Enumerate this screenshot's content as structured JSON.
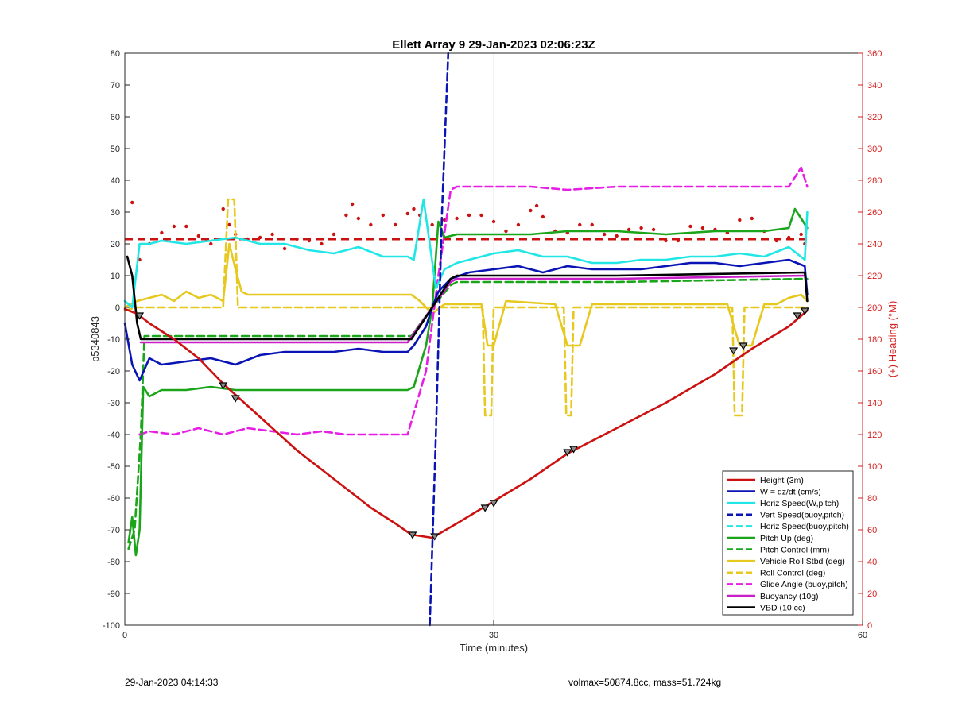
{
  "footer": {
    "left": "29-Jan-2023 04:14:33",
    "right": "volmax=50874.8cc, mass=51.724kg"
  },
  "chart_data": {
    "type": "line",
    "title": "Ellett Array 9 29-Jan-2023 02:06:23Z",
    "xlabel": "Time (minutes)",
    "ylabel": "p5340843",
    "y2label": "(+) Heading (°M)",
    "xlim": [
      0,
      60
    ],
    "ylim": [
      -100,
      80
    ],
    "y2lim": [
      0,
      360
    ],
    "xticks": [
      "0",
      "30",
      "60"
    ],
    "yticks": [
      "-100",
      "-90",
      "-80",
      "-70",
      "-60",
      "-50",
      "-40",
      "-30",
      "-20",
      "-10",
      "0",
      "10",
      "20",
      "30",
      "40",
      "50",
      "60",
      "70",
      "80"
    ],
    "y2ticks": [
      "0",
      "20",
      "40",
      "60",
      "80",
      "100",
      "120",
      "140",
      "160",
      "180",
      "200",
      "220",
      "240",
      "260",
      "280",
      "300",
      "320",
      "340",
      "360"
    ],
    "grid": "x-only",
    "legend_position": "bottom-right",
    "colors": {
      "height": "#cc1111",
      "w": "#0a14b4",
      "horiz": "#22e6e6",
      "vert_buoy": "#0a14b4",
      "pitch": "#1aa51a",
      "roll": "#e6c81e",
      "glide": "#e61ee6",
      "buoyancy": "#c81ec8",
      "vbd": "#000000",
      "heading": "#cc1111"
    },
    "series": [
      {
        "name": "Height (3m)",
        "style": "solid",
        "color": "#cc1111",
        "x": [
          0,
          1,
          2,
          4,
          6,
          8,
          10,
          12,
          14,
          16,
          18,
          20,
          22,
          23.3,
          25,
          27,
          30,
          33,
          36,
          40,
          44,
          48,
          51,
          54,
          55.5
        ],
        "y": [
          -0.5,
          -2,
          -5,
          -10,
          -16,
          -24,
          -31,
          -38,
          -45,
          -51,
          -57,
          -63,
          -68,
          -71.5,
          -72.5,
          -68,
          -61,
          -54,
          -46,
          -38,
          -30,
          -21,
          -13,
          -6,
          -1
        ]
      },
      {
        "name": "W = dz/dt (cm/s)",
        "style": "solid",
        "color": "#0a14b4",
        "x": [
          0,
          0.6,
          1.2,
          2,
          3,
          5,
          7,
          9,
          11,
          13,
          15,
          17,
          19,
          21,
          23,
          23.5,
          24.5,
          25,
          25.5,
          26.5,
          28,
          30,
          32,
          34,
          36,
          38,
          40,
          42,
          44,
          46,
          48,
          50,
          52,
          54,
          55.3,
          55.5
        ],
        "y": [
          -5,
          -18,
          -23,
          -16,
          -18,
          -17,
          -16,
          -18,
          -15,
          -14,
          -14,
          -14,
          -13,
          -14,
          -14,
          -12,
          -6,
          0,
          5,
          9,
          11,
          12,
          13,
          11,
          13,
          12,
          12,
          12,
          13,
          14,
          14,
          13,
          14,
          15,
          13,
          4
        ]
      },
      {
        "name": "Horiz Speed(W,pitch)",
        "style": "solid",
        "color": "#22e6e6",
        "x": [
          0,
          0.6,
          1.2,
          2,
          3,
          5,
          7,
          9,
          11,
          13,
          15,
          17,
          19,
          21,
          23,
          23.5,
          24.3,
          24.8,
          25.3,
          26,
          27,
          30,
          32,
          34,
          36,
          38,
          40,
          42,
          44,
          46,
          48,
          50,
          52,
          54,
          55.3,
          55.5
        ],
        "y": [
          2,
          0,
          20,
          20,
          21,
          20,
          21,
          22,
          20,
          20,
          18,
          17,
          19,
          16,
          16,
          15,
          34,
          20,
          6,
          12,
          14,
          17,
          18,
          16,
          16,
          14,
          14,
          15,
          15,
          16,
          16,
          17,
          16,
          19,
          15,
          30
        ]
      },
      {
        "name": "Vert Speed(buoy,pitch)",
        "style": "dash",
        "color": "#0a14b4",
        "x": [
          24.8,
          25.3,
          25.8,
          26.3
        ],
        "y": [
          -100,
          -40,
          30,
          80
        ]
      },
      {
        "name": "Horiz Speed(buoy,pitch)",
        "style": "dash",
        "color": "#22e6e6",
        "x": [],
        "y": []
      },
      {
        "name": "Pitch Up (deg)",
        "style": "solid",
        "color": "#1aa51a",
        "x": [
          0.3,
          0.6,
          0.9,
          1.2,
          1.5,
          2,
          3,
          5,
          7,
          9,
          11,
          13,
          15,
          17,
          19,
          21,
          23,
          23.5,
          24.5,
          25,
          25.5,
          26,
          27,
          30,
          33,
          36,
          40,
          44,
          48,
          52,
          54,
          54.5,
          55,
          55.5
        ],
        "y": [
          -74,
          -66,
          -78,
          -70,
          -25,
          -28,
          -26,
          -26,
          -25,
          -26,
          -26,
          -26,
          -26,
          -26,
          -26,
          -26,
          -26,
          -25,
          -12,
          0,
          27,
          22,
          23,
          23,
          23,
          24,
          24,
          23,
          24,
          24,
          25,
          31,
          28,
          25
        ]
      },
      {
        "name": "Pitch Control (mm)",
        "style": "dash",
        "color": "#1aa51a",
        "x": [
          0.3,
          0.8,
          1.3,
          1.6,
          3,
          10,
          20,
          23.3,
          25,
          26.5,
          27,
          40,
          55.5
        ],
        "y": [
          -76,
          -70,
          -40,
          -9,
          -9,
          -9,
          -9,
          -9,
          0,
          7,
          8,
          8,
          9
        ]
      },
      {
        "name": "Vehicle Roll Stbd (deg)",
        "style": "solid",
        "color": "#e6c81e",
        "x": [
          0,
          1,
          2,
          3,
          4,
          5,
          6,
          7,
          8,
          8.5,
          9,
          9.5,
          10,
          12,
          14,
          16,
          18,
          20,
          22,
          23.3,
          24,
          25,
          26,
          28,
          29,
          29.5,
          30,
          31,
          35,
          36,
          37,
          38,
          40,
          45,
          49,
          50,
          51,
          52,
          53,
          54,
          55,
          55.5
        ],
        "y": [
          0,
          2,
          3,
          4,
          2,
          5,
          3,
          4,
          2,
          20,
          12,
          5,
          4,
          4,
          4,
          4,
          4,
          4,
          4,
          4,
          2,
          -2,
          1,
          1,
          1,
          -12,
          -12,
          2,
          1,
          -12,
          -12,
          1,
          1,
          1,
          1,
          -12,
          -12,
          1,
          1,
          3,
          4,
          2
        ]
      },
      {
        "name": "Roll Control (deg)",
        "style": "dash",
        "color": "#e6c81e",
        "x": [
          0,
          1,
          3,
          5,
          7,
          8,
          8.4,
          8.9,
          9.2,
          10,
          15,
          20,
          23.3,
          24,
          25,
          28,
          29.1,
          29.3,
          29.8,
          30,
          30.3,
          35,
          35.7,
          35.9,
          36.3,
          36.5,
          37,
          45,
          49.4,
          49.6,
          50.2,
          50.4,
          51,
          55.5
        ],
        "y": [
          -1,
          0,
          0,
          0,
          0,
          0,
          34,
          34,
          0,
          0,
          0,
          0,
          0,
          0,
          0,
          0,
          0,
          -34,
          -34,
          0,
          0,
          0,
          0,
          -34,
          -34,
          0,
          0,
          0,
          0,
          -34,
          -34,
          0,
          0,
          0
        ]
      },
      {
        "name": "Glide Angle (buoy,pitch)",
        "style": "dash",
        "color": "#e61ee6",
        "x": [
          1.2,
          2,
          4,
          6,
          8,
          10,
          12,
          14,
          16,
          18,
          20,
          22,
          23,
          24.5,
          25.5,
          26.5,
          27,
          30,
          33,
          36,
          40,
          44,
          48,
          52,
          54,
          55,
          55.5
        ],
        "y": [
          -40,
          -39,
          -40,
          -38,
          -40,
          -38,
          -39,
          -40,
          -39,
          -40,
          -40,
          -40,
          -40,
          -20,
          10,
          37,
          38,
          38,
          38,
          37,
          38,
          38,
          38,
          38,
          38,
          44,
          38
        ]
      },
      {
        "name": "Buoyancy (10g)",
        "style": "solid",
        "color": "#c81ec8",
        "x": [
          1.3,
          2,
          10,
          20,
          23,
          25,
          26.5,
          27,
          40,
          55.3
        ],
        "y": [
          -11,
          -11,
          -11,
          -11,
          -11,
          0,
          8,
          9,
          9,
          10
        ]
      },
      {
        "name": "VBD (10 cc)",
        "style": "solid",
        "color": "#000000",
        "x": [
          0.2,
          0.6,
          1.0,
          1.3,
          2,
          10,
          20,
          23.3,
          25,
          26.5,
          27,
          40,
          55.3,
          55.5
        ],
        "y": [
          16,
          10,
          -5,
          -10,
          -10,
          -10,
          -10,
          -10,
          0,
          9,
          10,
          10,
          11,
          2
        ]
      }
    ],
    "heading_dots": {
      "name": "Heading",
      "color": "#cc1111",
      "x": [
        0.6,
        1.2,
        2,
        3,
        4,
        5,
        6,
        7,
        8,
        8.5,
        9,
        10,
        11,
        12,
        13,
        14,
        15,
        16,
        17,
        18,
        18.5,
        19,
        20,
        21,
        22,
        23,
        23.5,
        24,
        25,
        26,
        27,
        28,
        29,
        30,
        31,
        32,
        33,
        33.5,
        34,
        35,
        36,
        37,
        38,
        39,
        40,
        41,
        42,
        43,
        44,
        45,
        46,
        47,
        48,
        49,
        50,
        51,
        52,
        53,
        54,
        55,
        55.3
      ],
      "y": [
        266,
        230,
        240,
        247,
        251,
        251,
        245,
        240,
        262,
        252,
        246,
        243,
        244,
        246,
        237,
        243,
        242,
        240,
        246,
        258,
        265,
        256,
        252,
        258,
        252,
        259,
        262,
        258,
        252,
        255,
        256,
        258,
        258,
        254,
        248,
        252,
        261,
        264,
        257,
        248,
        247,
        252,
        252,
        246,
        245,
        249,
        250,
        249,
        242,
        242,
        251,
        250,
        249,
        247,
        255,
        256,
        248,
        242,
        244,
        246,
        240
      ]
    },
    "heading_mean": {
      "name": "Heading mean",
      "style": "dash",
      "color": "#cc1111",
      "x": [
        0,
        55.5
      ],
      "y2": [
        243,
        243
      ]
    },
    "triangle_markers": {
      "x": [
        1.2,
        8,
        9,
        23.4,
        25.2,
        29.3,
        30,
        36,
        36.5,
        49.5,
        50.3,
        54.7,
        55.3
      ],
      "y": [
        -2.5,
        -24.5,
        -28.5,
        -71.5,
        -72,
        -63,
        -61.5,
        -45.5,
        -44.5,
        -13.5,
        -12,
        -2.5,
        -1
      ]
    }
  }
}
